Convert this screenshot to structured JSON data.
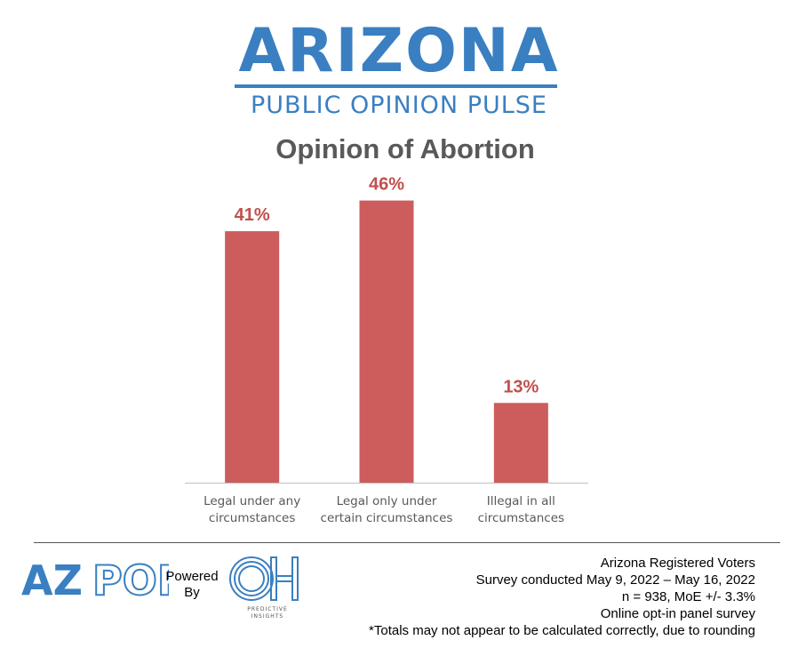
{
  "header": {
    "brand_title": "ARIZONA",
    "brand_subtitle": "PUBLIC OPINION PULSE"
  },
  "colors": {
    "brand_blue": "#3a7fc1",
    "bar": "#cd5c5c",
    "data_label": "#c0504d",
    "title_gray": "#595959"
  },
  "chart_data": {
    "type": "bar",
    "title": "Opinion of Abortion",
    "categories": [
      [
        "Legal under any",
        "circumstances"
      ],
      [
        "Legal only under",
        "certain circumstances"
      ],
      [
        "Illegal in all",
        "circumstances"
      ]
    ],
    "values": [
      41,
      46,
      13
    ],
    "data_labels": [
      "41%",
      "46%",
      "13%"
    ],
    "ylim": [
      0,
      50
    ],
    "grid": false,
    "legend": "none",
    "xlabel": "",
    "ylabel": ""
  },
  "footer": {
    "logo_text": "AZPOP",
    "powered_line1": "Powered",
    "powered_line2": "By",
    "partner_logo_text": "OH",
    "partner_caption_line1": "PREDICTIVE",
    "partner_caption_line2": "INSIGHTS",
    "notes": [
      "Arizona Registered Voters",
      "Survey conducted May 9, 2022 – May 16, 2022",
      "n = 938, MoE +/- 3.3%",
      "Online opt-in panel survey",
      "*Totals may not appear to be calculated correctly, due to rounding"
    ]
  }
}
